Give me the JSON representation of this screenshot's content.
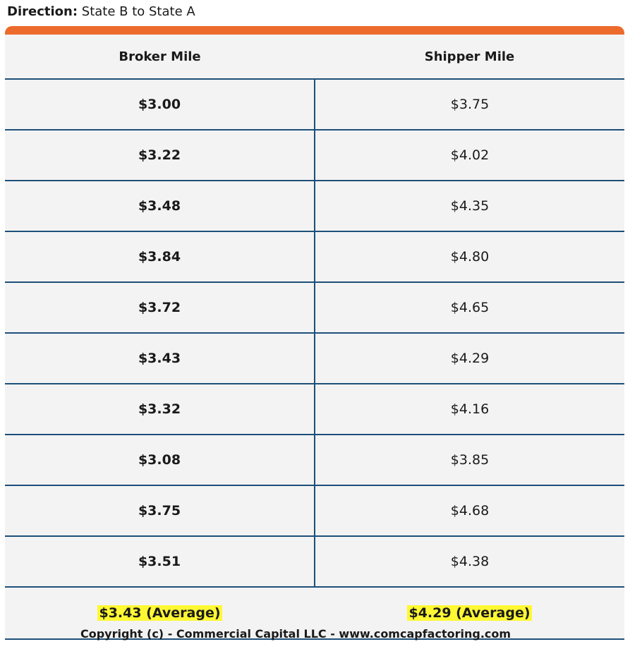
{
  "header": {
    "label": "Direction:",
    "value": "State B to State A"
  },
  "table": {
    "columns": [
      "Broker Mile",
      "Shipper Mile"
    ],
    "rows": [
      [
        "$3.00",
        "$3.75"
      ],
      [
        "$3.22",
        "$4.02"
      ],
      [
        "$3.48",
        "$4.35"
      ],
      [
        "$3.84",
        "$4.80"
      ],
      [
        "$3.72",
        "$4.65"
      ],
      [
        "$3.43",
        "$4.29"
      ],
      [
        "$3.32",
        "$4.16"
      ],
      [
        "$3.08",
        "$3.85"
      ],
      [
        "$3.75",
        "$4.68"
      ],
      [
        "$3.51",
        "$4.38"
      ]
    ],
    "average": [
      "$3.43 (Average)",
      "$4.29 (Average)"
    ]
  },
  "footer": "Copyright (c) - Commercial Capital LLC - www.comcapfactoring.com"
}
